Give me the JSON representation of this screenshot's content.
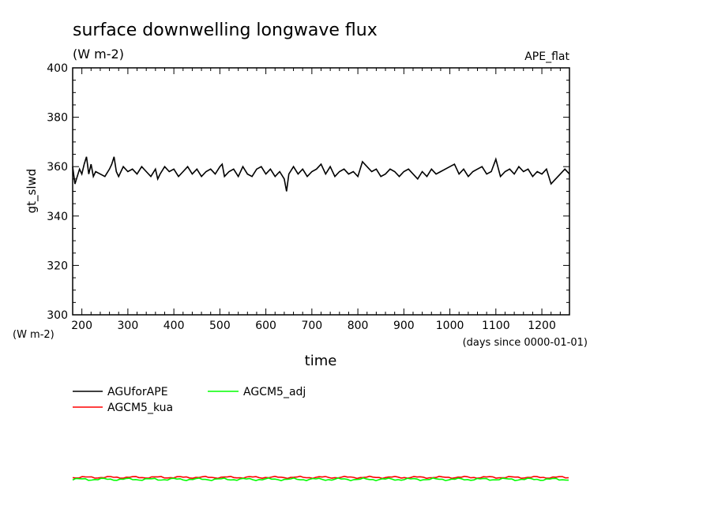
{
  "header": {
    "title": "surface downwelling longwave flux",
    "units": "(W m-2)",
    "experiment": "APE_flat"
  },
  "chart_data": {
    "type": "line",
    "title": "surface downwelling longwave flux",
    "xlabel": "time",
    "x_unit_note": "(days since 0000-01-01)",
    "ylabel": "gt_slwd",
    "y_unit_note": "(W m-2)",
    "xlim": [
      180,
      1260
    ],
    "ylim": [
      300,
      400
    ],
    "x_ticks": [
      200,
      300,
      400,
      500,
      600,
      700,
      800,
      900,
      1000,
      1100,
      1200
    ],
    "y_ticks": [
      300,
      320,
      340,
      360,
      380,
      400
    ],
    "grid": false,
    "legend_position": "bottom-left",
    "series": [
      {
        "name": "AGUforAPE",
        "color": "#000000",
        "x": [
          180,
          185,
          190,
          195,
          200,
          205,
          210,
          215,
          220,
          225,
          230,
          240,
          250,
          260,
          265,
          270,
          275,
          280,
          290,
          300,
          310,
          320,
          330,
          340,
          350,
          360,
          365,
          370,
          380,
          390,
          400,
          410,
          420,
          430,
          440,
          450,
          460,
          470,
          480,
          490,
          500,
          505,
          510,
          515,
          520,
          530,
          540,
          550,
          560,
          570,
          580,
          590,
          600,
          610,
          620,
          630,
          640,
          645,
          650,
          660,
          670,
          680,
          690,
          700,
          710,
          720,
          730,
          740,
          750,
          760,
          770,
          780,
          790,
          800,
          810,
          820,
          830,
          840,
          850,
          860,
          870,
          880,
          890,
          900,
          910,
          920,
          930,
          940,
          950,
          960,
          970,
          980,
          990,
          1000,
          1010,
          1020,
          1030,
          1040,
          1050,
          1060,
          1070,
          1080,
          1090,
          1100,
          1110,
          1120,
          1130,
          1140,
          1150,
          1160,
          1170,
          1180,
          1190,
          1200,
          1210,
          1220,
          1230,
          1240,
          1250,
          1260
        ],
        "values": [
          360,
          353,
          356,
          359,
          357,
          361,
          364,
          357,
          361,
          356,
          358,
          357,
          356,
          359,
          361,
          364,
          358,
          356,
          360,
          358,
          359,
          357,
          360,
          358,
          356,
          359,
          355,
          357,
          360,
          358,
          359,
          356,
          358,
          360,
          357,
          359,
          356,
          358,
          359,
          357,
          360,
          361,
          356,
          357,
          358,
          359,
          356,
          360,
          357,
          356,
          359,
          360,
          357,
          359,
          356,
          358,
          355,
          350,
          357,
          360,
          357,
          359,
          356,
          358,
          359,
          361,
          357,
          360,
          356,
          358,
          359,
          357,
          358,
          356,
          362,
          360,
          358,
          359,
          356,
          357,
          359,
          358,
          356,
          358,
          359,
          357,
          355,
          358,
          356,
          359,
          357,
          358,
          359,
          360,
          361,
          357,
          359,
          356,
          358,
          359,
          360,
          357,
          358,
          363,
          356,
          358,
          359,
          357,
          360,
          358,
          359,
          356,
          358,
          357,
          359,
          353,
          355,
          357,
          359,
          357
        ]
      },
      {
        "name": "AGCM5_kua",
        "color": "#ff0000",
        "x": [],
        "values": []
      },
      {
        "name": "AGCM5_adj",
        "color": "#00ff00",
        "x": [],
        "values": []
      }
    ]
  },
  "legend": [
    {
      "label": "AGUforAPE",
      "color": "#000000"
    },
    {
      "label": "AGCM5_kua",
      "color": "#ff0000"
    },
    {
      "label": "AGCM5_adj",
      "color": "#00ff00"
    }
  ]
}
